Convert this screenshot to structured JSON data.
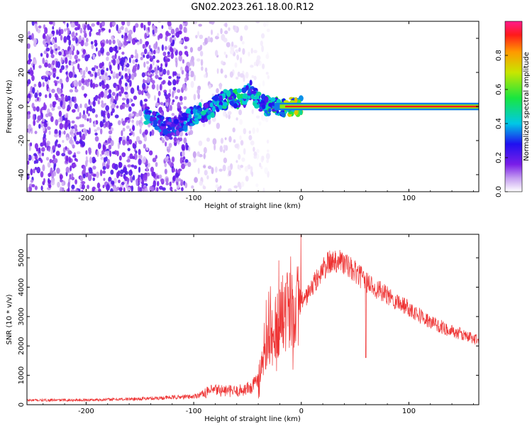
{
  "title": "GN02.2023.261.18.00.R12",
  "chart_data": [
    {
      "type": "heatmap",
      "xlabel": "Height of straight line (km)",
      "ylabel": "Frequency (Hz)",
      "xlim": [
        -255,
        165
      ],
      "ylim": [
        -50,
        50
      ],
      "xticks": [
        "-200",
        "-100",
        "0",
        "100"
      ],
      "xtick_values": [
        -200,
        -100,
        0,
        100
      ],
      "yticks": [
        "40",
        "20",
        "0",
        "-20",
        "-40"
      ],
      "ytick_values": [
        40,
        20,
        0,
        -20,
        -40
      ],
      "colorbar": {
        "label": "Normalized spectral amplitude",
        "ticks": [
          "0.0",
          "0.2",
          "0.4",
          "0.6",
          "0.8"
        ],
        "tick_values": [
          0.0,
          0.2,
          0.4,
          0.6,
          0.8
        ],
        "range": [
          0,
          1
        ]
      },
      "regions": [
        {
          "x": [
            -255,
            -105
          ],
          "freq": [
            -50,
            50
          ],
          "amplitude": 0.15,
          "note": "noise"
        },
        {
          "x": [
            -105,
            -30
          ],
          "freq": [
            -50,
            50
          ],
          "amplitude": 0.05,
          "note": "sparse noise"
        }
      ],
      "ridge": [
        {
          "x": -145,
          "freq": -5,
          "amplitude": 0.45
        },
        {
          "x": -125,
          "freq": -13,
          "amplitude": 0.3
        },
        {
          "x": -110,
          "freq": -10,
          "amplitude": 0.35
        },
        {
          "x": -100,
          "freq": -5,
          "amplitude": 0.5
        },
        {
          "x": -85,
          "freq": -2,
          "amplitude": 0.4
        },
        {
          "x": -75,
          "freq": 3,
          "amplitude": 0.45
        },
        {
          "x": -65,
          "freq": 6,
          "amplitude": 0.5
        },
        {
          "x": -55,
          "freq": 4,
          "amplitude": 0.5
        },
        {
          "x": -48,
          "freq": 10,
          "amplitude": 0.4
        },
        {
          "x": -40,
          "freq": 3,
          "amplitude": 0.45
        },
        {
          "x": -30,
          "freq": 0,
          "amplitude": 0.5
        },
        {
          "x": -20,
          "freq": 0,
          "amplitude": 0.6
        },
        {
          "x": -10,
          "freq": 0,
          "amplitude": 0.7
        },
        {
          "x": 0,
          "freq": 0,
          "amplitude": 0.8
        },
        {
          "x": 50,
          "freq": 0,
          "amplitude": 0.9
        },
        {
          "x": 100,
          "freq": 0,
          "amplitude": 0.9
        },
        {
          "x": 165,
          "freq": 0,
          "amplitude": 0.9
        }
      ]
    },
    {
      "type": "line",
      "xlabel": "Height of straight line (km)",
      "ylabel": "SNR (10 * v/v)",
      "xlim": [
        -255,
        165
      ],
      "ylim": [
        0,
        5800
      ],
      "xticks": [
        "-200",
        "-100",
        "0",
        "100"
      ],
      "xtick_values": [
        -200,
        -100,
        0,
        100
      ],
      "yticks": [
        "0",
        "1000",
        "2000",
        "3000",
        "4000",
        "5000"
      ],
      "ytick_values": [
        0,
        1000,
        2000,
        3000,
        4000,
        5000
      ],
      "series": [
        {
          "color": "#ee3333",
          "x": [
            -255,
            -200,
            -150,
            -100,
            -90,
            -80,
            -60,
            -45,
            -40,
            -35,
            -30,
            -25,
            -20,
            -15,
            -10,
            -5,
            0,
            5,
            10,
            15,
            20,
            25,
            30,
            35,
            40,
            50,
            60,
            80,
            100,
            120,
            140,
            165
          ],
          "y": [
            150,
            160,
            200,
            280,
            400,
            500,
            450,
            600,
            1000,
            1600,
            2200,
            2600,
            2900,
            3100,
            3300,
            3400,
            3500,
            3700,
            4000,
            4300,
            4600,
            4800,
            4900,
            4950,
            4800,
            4500,
            4200,
            3700,
            3300,
            2800,
            2500,
            2200
          ]
        }
      ]
    }
  ]
}
